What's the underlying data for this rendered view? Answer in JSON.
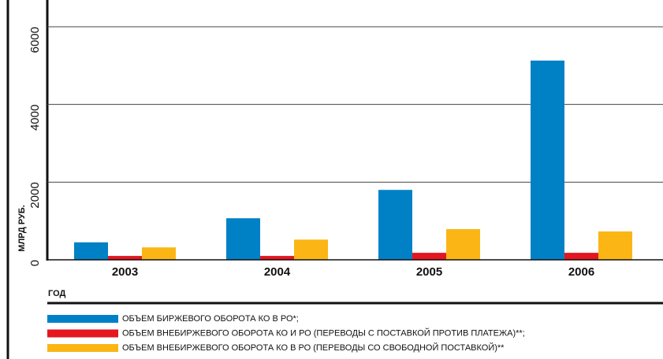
{
  "chart_data": {
    "type": "bar",
    "ylabel": "МЛРД РУБ.",
    "xlabel": "ГОД",
    "categories": [
      "2003",
      "2004",
      "2005",
      "2006"
    ],
    "series": [
      {
        "name": "ОБЪЕМ БИРЖЕВОГО ОБОРОТА КО В РО*;",
        "color": "#0081c6",
        "values": [
          450,
          1070,
          1800,
          5130
        ]
      },
      {
        "name": "ОБЪЕМ ВНЕБИРЖЕВОГО ОБОРОТА КО И РО (ПЕРЕВОДЫ С ПОСТАВКОЙ ПРОТИВ ПЛАТЕЖА)**;",
        "color": "#e4161f",
        "values": [
          100,
          100,
          180,
          180
        ]
      },
      {
        "name": "ОБЪЕМ ВНЕБИРЖЕВОГО ОБОРОТА КО В РО (ПЕРЕВОДЫ СО СВОБОДНОЙ ПОСТАВКОЙ)**",
        "color": "#fbb616",
        "values": [
          320,
          520,
          790,
          730
        ]
      }
    ],
    "ylim": [
      0,
      6000
    ],
    "yticks": [
      0,
      2000,
      4000,
      6000
    ],
    "grid": true
  }
}
